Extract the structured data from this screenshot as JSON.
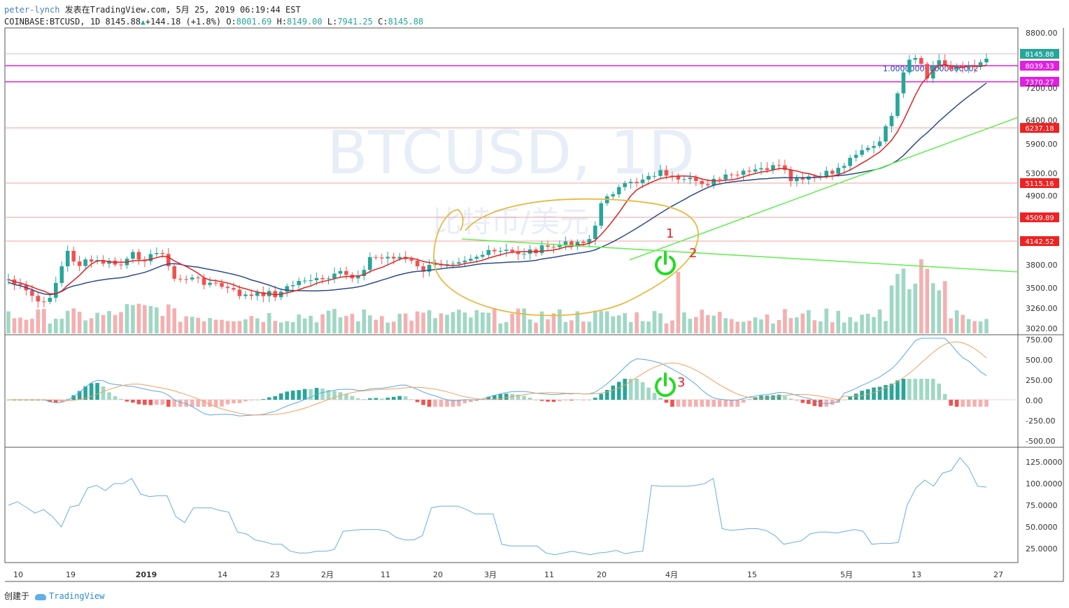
{
  "header": {
    "author": "peter-lynch",
    "published_text": "发表在TradingView.com, 5月 25, 2019 06:19:44 EST",
    "symbol": "COINBASE:BTCUSD, 1D",
    "last": "8145.88",
    "change": "+144.18 (+1.8%)",
    "o_label": "O:",
    "o_value": "8001.69",
    "h_label": "H:",
    "h_value": "8149.00",
    "l_label": "L:",
    "l_value": "7941.25",
    "c_label": "C:",
    "c_value": "8145.88"
  },
  "watermark": {
    "line1": "BTCUSD, 1D",
    "line2": "比特币/美元"
  },
  "footer": {
    "created": "创建于",
    "brand": "TradingView"
  },
  "colors": {
    "up": "#26a69a",
    "down": "#ef5350",
    "ma_fast": "#e02020",
    "ma_slow": "#2c4a8c",
    "trend_line": "#66ee55",
    "hline": "#f0a0a0",
    "magenta": "#e020e0",
    "annot": "#e8b840",
    "power_icon": "#22dd22"
  },
  "chart_data": [
    {
      "type": "candlestick",
      "panel": "price",
      "y_ticks": [
        "8800.00",
        "7200.00",
        "6400.00",
        "5900.00",
        "5300.00",
        "4900.00",
        "3800.00",
        "3500.00",
        "3260.00",
        "3020.00"
      ],
      "x_ticks": [
        "10",
        "19",
        "2019",
        "14",
        "23",
        "2月",
        "11",
        "20",
        "3月",
        "11",
        "20",
        "4月",
        "15",
        "5月",
        "13",
        "27"
      ],
      "horizontal_levels": [
        {
          "value": 8039.33,
          "label": "8039.33",
          "color": "#e020e0"
        },
        {
          "value": 7370.27,
          "label": "7370.27",
          "color": "#e020e0"
        },
        {
          "value": 6237.18,
          "label": "6237.18",
          "color": "#ee2222"
        },
        {
          "value": 5115.16,
          "label": "5115.16",
          "color": "#ee2222"
        },
        {
          "value": 4509.89,
          "label": "4509.89",
          "color": "#ee2222"
        },
        {
          "value": 4142.52,
          "label": "4142.52",
          "color": "#ee2222"
        }
      ],
      "last_price_label": "8145.88",
      "fib_label": "1.000000000000000002",
      "annotations": [
        "1",
        "2",
        "3"
      ]
    },
    {
      "type": "bar+line",
      "panel": "macd",
      "y_ticks": [
        "750.00",
        "500.00",
        "250.00",
        "0.00",
        "-250.00",
        "-500.00"
      ]
    },
    {
      "type": "line",
      "panel": "oscillator",
      "y_ticks": [
        "125.0000",
        "100.0000",
        "75.0000",
        "50.0000",
        "25.0000"
      ],
      "values": [
        75,
        79,
        73,
        66,
        70,
        62,
        50,
        73,
        75,
        95,
        98,
        92,
        100,
        100,
        106,
        88,
        85,
        86,
        86,
        62,
        55,
        72,
        72,
        72,
        69,
        67,
        44,
        42,
        35,
        33,
        30,
        30,
        22,
        20,
        20,
        22,
        22,
        24,
        45,
        46,
        47,
        47,
        47,
        45,
        38,
        35,
        35,
        40,
        72,
        74,
        74,
        74,
        70,
        65,
        65,
        65,
        30,
        28,
        28,
        28,
        28,
        20,
        18,
        20,
        22,
        20,
        18,
        20,
        21,
        23,
        19,
        21,
        22,
        98,
        97,
        97,
        97,
        97,
        98,
        100,
        106,
        48,
        46,
        47,
        48,
        48,
        46,
        40,
        30,
        32,
        34,
        42,
        44,
        44,
        43,
        45,
        47,
        45,
        30,
        31,
        31,
        32,
        75,
        95,
        104,
        97,
        112,
        115,
        130,
        118,
        97,
        96
      ]
    }
  ]
}
